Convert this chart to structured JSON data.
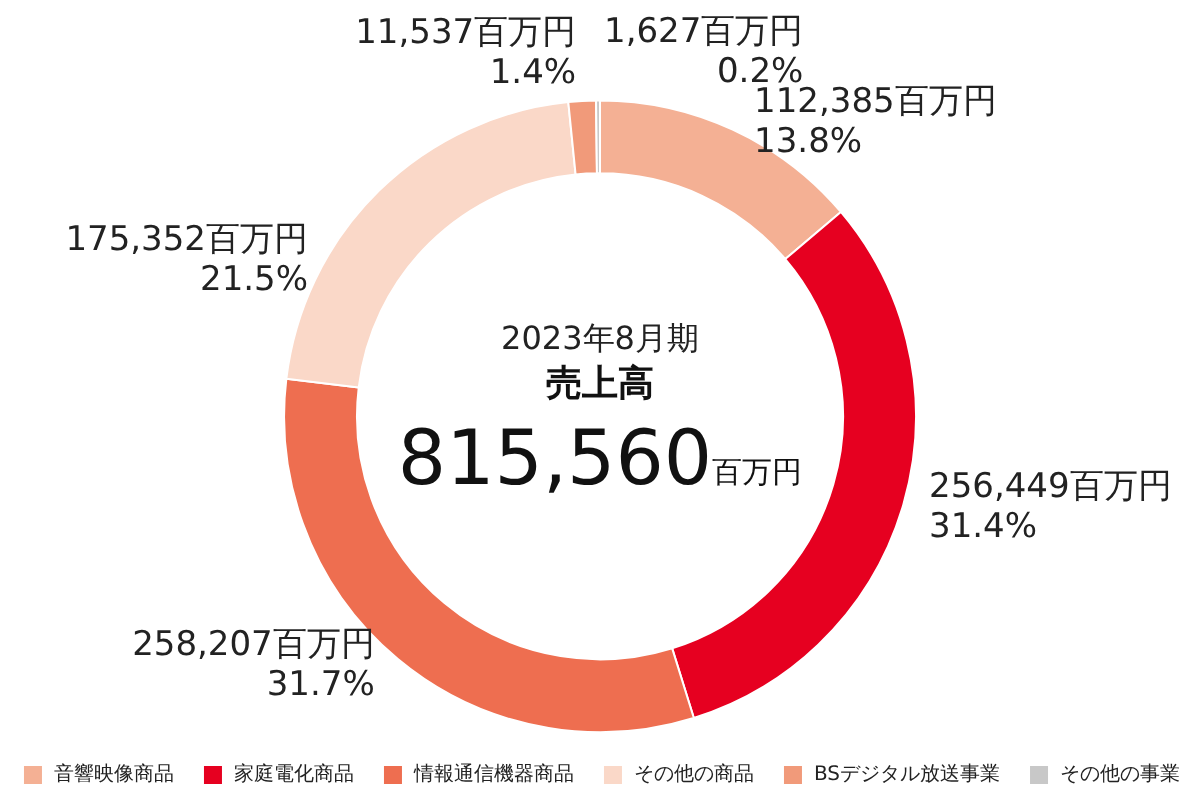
{
  "chart_data": {
    "type": "donut",
    "title": "2023年8月期",
    "subtitle": "売上高",
    "annotations": [
      "815,560百万円"
    ],
    "categories": [
      "音響映像商品",
      "家庭電化商品",
      "情報通信機器商品",
      "その他の商品",
      "BSデジタル放送事業",
      "その他の事業"
    ],
    "values": [
      13.8,
      31.4,
      31.7,
      21.5,
      1.4,
      0.2
    ],
    "value_labels": [
      "112,385百万円\n13.8%",
      "256,449百万円\n31.4%",
      "258,207百万円\n31.7%",
      "175,352百万円\n21.5%",
      "11,537百万円\n1.4%",
      "1,627百万円\n0.2%"
    ],
    "colors": [
      "#f4b094",
      "#e60020",
      "#ee6e50",
      "#fad8c8",
      "#f19a7a",
      "#c8c8c8"
    ],
    "legend": "bottom"
  }
}
